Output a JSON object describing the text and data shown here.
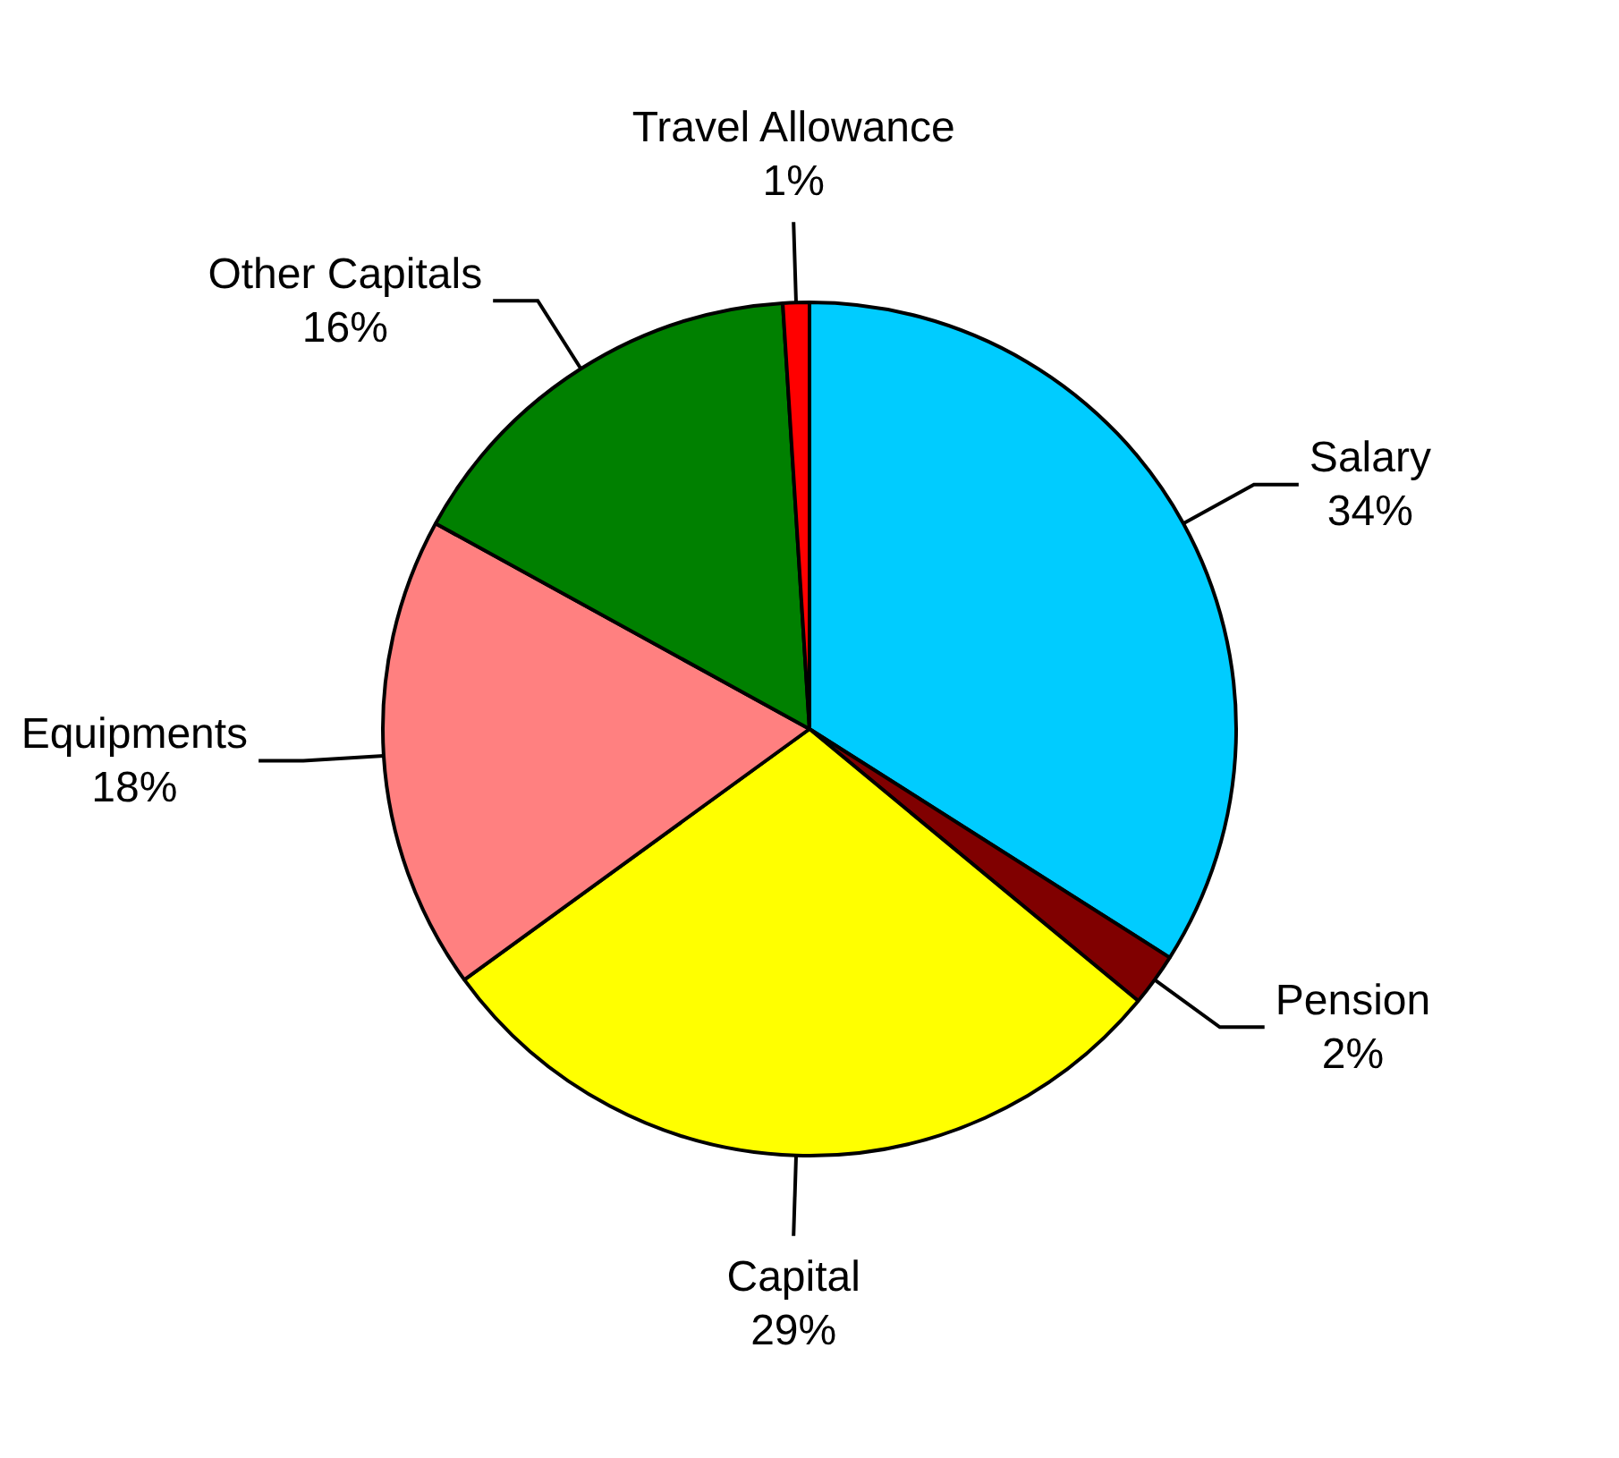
{
  "chart_data": {
    "type": "pie",
    "categories": [
      "Salary",
      "Pension",
      "Capital",
      "Equipments",
      "Other Capitals",
      "Travel Allowance"
    ],
    "values": [
      34,
      2,
      29,
      18,
      16,
      1
    ],
    "value_labels": [
      "34%",
      "2%",
      "29%",
      "18%",
      "16%",
      "1%"
    ],
    "colors": [
      "#00ccff",
      "#800000",
      "#ffff00",
      "#ff8080",
      "#008000",
      "#ff0000"
    ],
    "legend": false
  }
}
